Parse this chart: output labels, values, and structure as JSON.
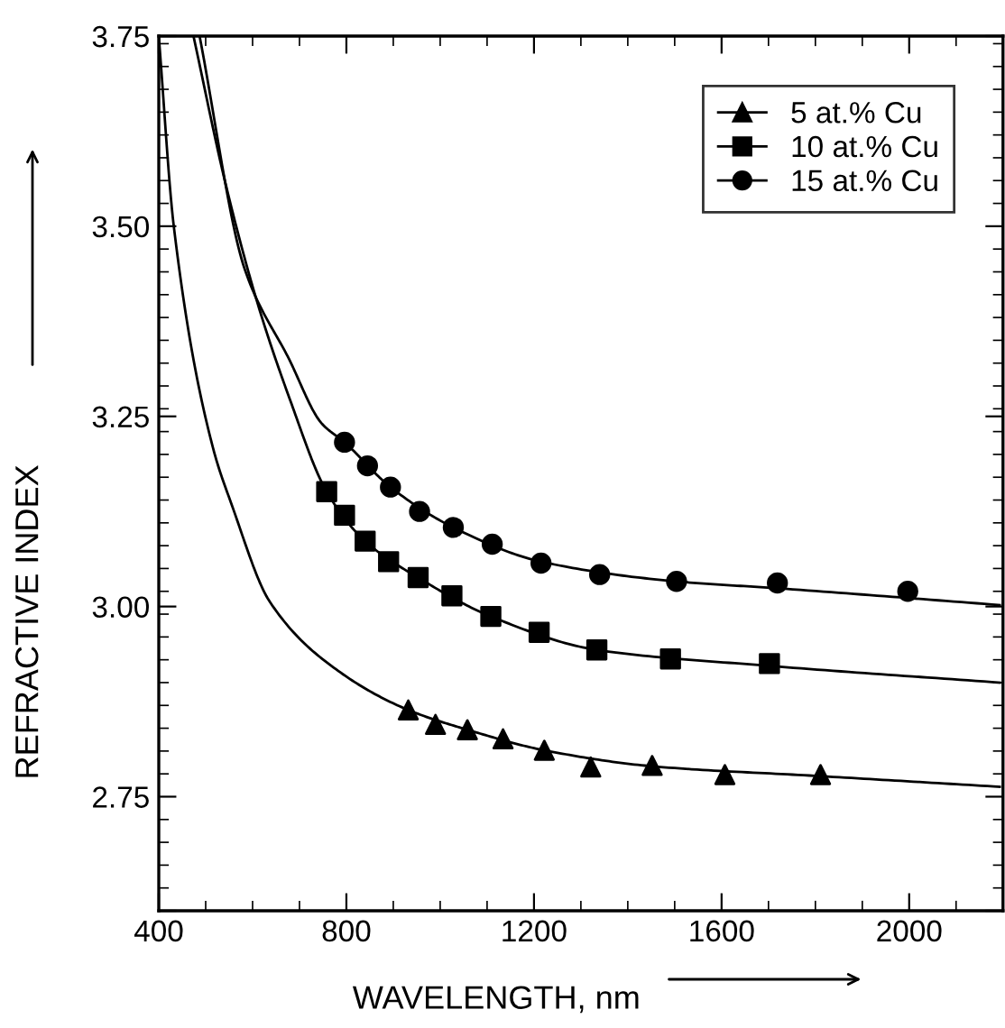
{
  "chart_data": {
    "type": "scatter",
    "xlabel": "WAVELENGTH, nm",
    "ylabel": "REFRACTIVE INDEX",
    "xlim": [
      400,
      2200
    ],
    "xticks": [
      400,
      800,
      1200,
      1600,
      2000
    ],
    "ylim": [
      2.6,
      3.75
    ],
    "yticks": [
      {
        "value": 2.6,
        "label": null
      },
      2.75,
      "3.00",
      3.25,
      "3.50",
      3.75
    ],
    "grid": false,
    "legend": "top right",
    "series": [
      {
        "name": "5 at.% Cu",
        "color": "#000000",
        "marker": "triangle",
        "x": [
          932,
          990,
          1058,
          1134,
          1222,
          1321,
          1452,
          1607,
          1811
        ],
        "values": [
          2.864,
          2.845,
          2.838,
          2.826,
          2.811,
          2.789,
          2.791,
          2.779,
          2.779
        ]
      },
      {
        "name": "10 at.% Cu",
        "color": "#000000",
        "marker": "square",
        "x": [
          758,
          796,
          840,
          890,
          953,
          1025,
          1108,
          1211,
          1334,
          1491,
          1702
        ],
        "values": [
          3.151,
          3.12,
          3.086,
          3.059,
          3.038,
          3.014,
          2.987,
          2.966,
          2.943,
          2.931,
          2.925
        ]
      },
      {
        "name": "15 at.% Cu",
        "color": "#000000",
        "marker": "circle",
        "x": [
          796,
          845,
          894,
          956,
          1028,
          1111,
          1215,
          1340,
          1504,
          1719,
          1997
        ],
        "values": [
          3.216,
          3.185,
          3.157,
          3.125,
          3.104,
          3.082,
          3.057,
          3.042,
          3.033,
          3.031,
          3.02
        ]
      },
      {
        "type": "line",
        "color": "#000000",
        "marker": "none",
        "x": [
          400,
          432,
          515,
          556,
          637,
          788,
          932,
          1058,
          1222,
          1452,
          1811,
          2193
        ],
        "values": [
          3.75,
          3.5,
          3.21,
          3.133,
          3.006,
          2.913,
          2.864,
          2.838,
          2.811,
          2.79,
          2.777,
          2.763
        ]
      },
      {
        "type": "line",
        "color": "#000000",
        "marker": "none",
        "x": [
          474,
          542,
          610,
          678,
          758,
          840,
          953,
          1108,
          1334,
          1702,
          2193
        ],
        "values": [
          3.75,
          3.557,
          3.4,
          3.275,
          3.151,
          3.086,
          3.038,
          2.987,
          2.943,
          2.922,
          2.9
        ]
      },
      {
        "type": "line",
        "color": "#000000",
        "marker": "none",
        "x": [
          487,
          583,
          678,
          747,
          796,
          894,
          1028,
          1215,
          1504,
          1719,
          2193
        ],
        "values": [
          3.75,
          3.444,
          3.325,
          3.241,
          3.216,
          3.157,
          3.104,
          3.059,
          3.033,
          3.024,
          3.002
        ]
      }
    ]
  }
}
